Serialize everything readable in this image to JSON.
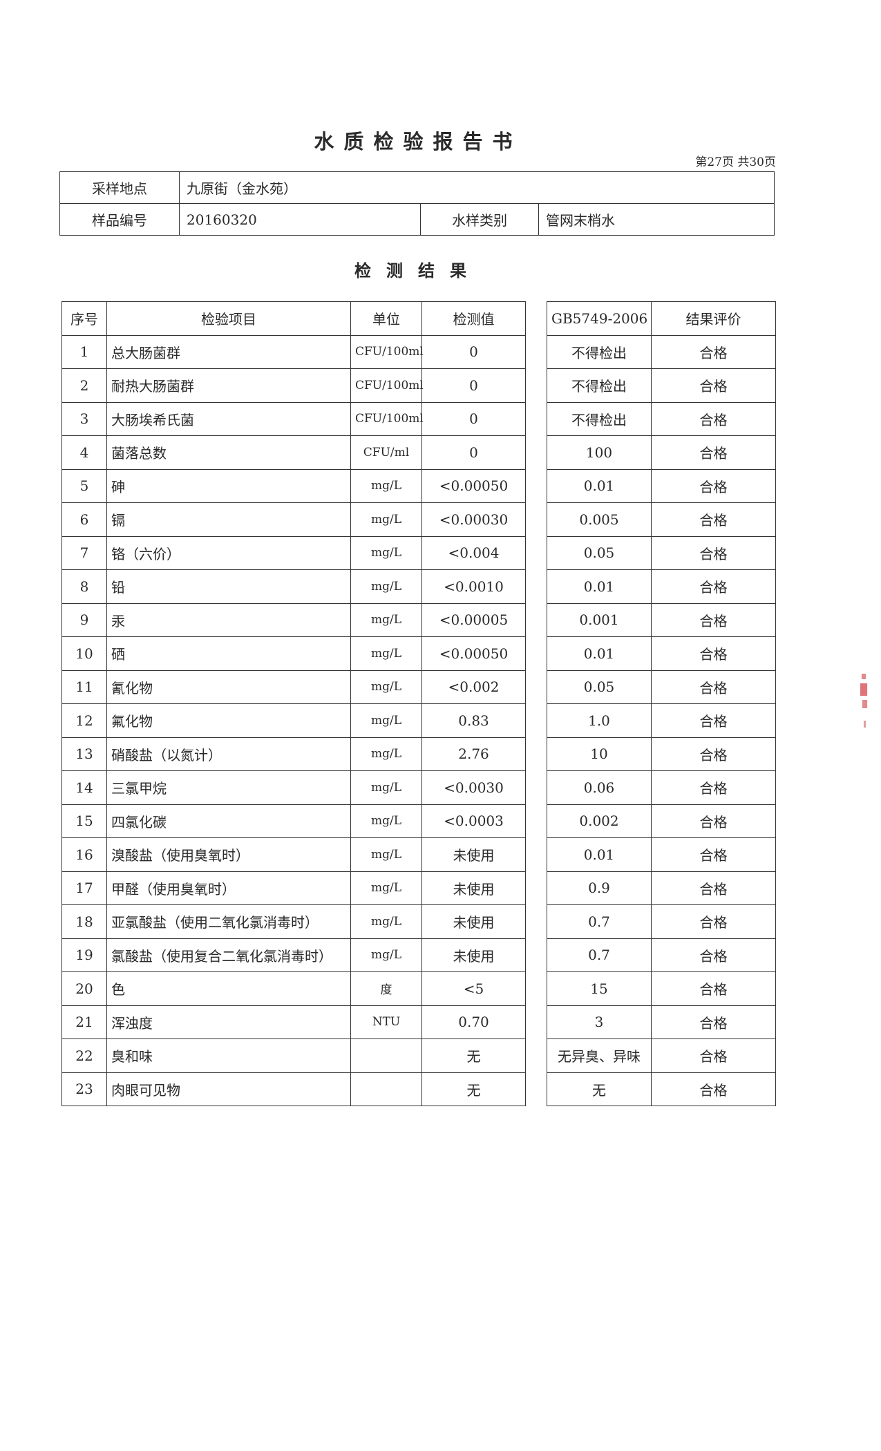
{
  "title": "水质检验报告书",
  "page_info": "第27页  共30页",
  "info": {
    "sampling_site_label": "采样地点",
    "sampling_site": "九原街（金水苑）",
    "sample_no_label": "样品编号",
    "sample_no": "20160320",
    "water_type_label": "水样类别",
    "water_type": "管网末梢水"
  },
  "results_heading": "检测结果",
  "columns": [
    "序号",
    "检验项目",
    "单位",
    "检测值",
    "GB5749-2006",
    "结果评价"
  ],
  "rows": [
    [
      "1",
      "总大肠菌群",
      "CFU/100ml",
      "0",
      "不得检出",
      "合格"
    ],
    [
      "2",
      "耐热大肠菌群",
      "CFU/100ml",
      "0",
      "不得检出",
      "合格"
    ],
    [
      "3",
      "大肠埃希氏菌",
      "CFU/100ml",
      "0",
      "不得检出",
      "合格"
    ],
    [
      "4",
      "菌落总数",
      "CFU/ml",
      "0",
      "100",
      "合格"
    ],
    [
      "5",
      "砷",
      "mg/L",
      "<0.00050",
      "0.01",
      "合格"
    ],
    [
      "6",
      "镉",
      "mg/L",
      "<0.00030",
      "0.005",
      "合格"
    ],
    [
      "7",
      "铬（六价）",
      "mg/L",
      "<0.004",
      "0.05",
      "合格"
    ],
    [
      "8",
      "铅",
      "mg/L",
      "<0.0010",
      "0.01",
      "合格"
    ],
    [
      "9",
      "汞",
      "mg/L",
      "<0.00005",
      "0.001",
      "合格"
    ],
    [
      "10",
      "硒",
      "mg/L",
      "<0.00050",
      "0.01",
      "合格"
    ],
    [
      "11",
      "氰化物",
      "mg/L",
      "<0.002",
      "0.05",
      "合格"
    ],
    [
      "12",
      "氟化物",
      "mg/L",
      "0.83",
      "1.0",
      "合格"
    ],
    [
      "13",
      "硝酸盐（以氮计）",
      "mg/L",
      "2.76",
      "10",
      "合格"
    ],
    [
      "14",
      "三氯甲烷",
      "mg/L",
      "<0.0030",
      "0.06",
      "合格"
    ],
    [
      "15",
      "四氯化碳",
      "mg/L",
      "<0.0003",
      "0.002",
      "合格"
    ],
    [
      "16",
      "溴酸盐（使用臭氧时）",
      "mg/L",
      "未使用",
      "0.01",
      "合格"
    ],
    [
      "17",
      "甲醛（使用臭氧时）",
      "mg/L",
      "未使用",
      "0.9",
      "合格"
    ],
    [
      "18",
      "亚氯酸盐（使用二氧化氯消毒时）",
      "mg/L",
      "未使用",
      "0.7",
      "合格"
    ],
    [
      "19",
      "氯酸盐（使用复合二氧化氯消毒时）",
      "mg/L",
      "未使用",
      "0.7",
      "合格"
    ],
    [
      "20",
      "色",
      "度",
      "<5",
      "15",
      "合格"
    ],
    [
      "21",
      "浑浊度",
      "NTU",
      "0.70",
      "3",
      "合格"
    ],
    [
      "22",
      "臭和味",
      "",
      "无",
      "无异臭、异味",
      "合格"
    ],
    [
      "23",
      "肉眼可见物",
      "",
      "无",
      "无",
      "合格"
    ]
  ],
  "colors": {
    "ink": "#2a2a2a",
    "stamp": "#d8363c"
  }
}
